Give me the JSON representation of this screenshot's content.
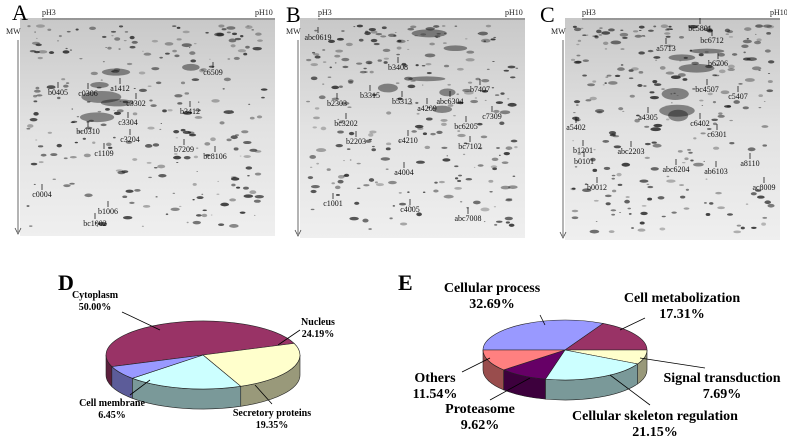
{
  "gels": [
    {
      "panel": "A",
      "left": "pH3",
      "right": "pH10",
      "axis": "MW",
      "spots": [
        "c6509",
        "b0405",
        "c0306",
        "a1412",
        "c3302",
        "b3412",
        "c3304",
        "bc0310",
        "c3204",
        "b7209",
        "bc8106",
        "c1109",
        "c0004",
        "b1006",
        "bc1002"
      ]
    },
    {
      "panel": "B",
      "left": "pH3",
      "right": "pH10",
      "axis": "MW",
      "spots": [
        "abc0619",
        "b3408",
        "b7407",
        "b2303",
        "b3315",
        "b5313",
        "a4209",
        "abc6304",
        "c7309",
        "bc3202",
        "bc6205",
        "c4210",
        "b2203",
        "bc7102",
        "a4004",
        "c1001",
        "c4005",
        "abc7008"
      ]
    },
    {
      "panel": "C",
      "left": "pH3",
      "right": "pH10",
      "axis": "MW",
      "spots": [
        "bc5801",
        "bc6712",
        "a5713",
        "b6706",
        "bc4507",
        "c5407",
        "a4305",
        "c6402",
        "a5402",
        "c6301",
        "b1201",
        "abc2203",
        "b0101",
        "abc6204",
        "ab6103",
        "a8110",
        "b0012",
        "ac8009"
      ]
    }
  ],
  "chart_data": [
    {
      "type": "pie",
      "panel": "D",
      "categories": [
        "Cytoplasm",
        "Nucleus",
        "Secretory proteins",
        "Cell membrane"
      ],
      "values": [
        50.0,
        24.19,
        19.35,
        6.45
      ],
      "value_labels": [
        "50.00%",
        "24.19%",
        "19.35%",
        "6.45%"
      ],
      "colors": [
        "#993366",
        "#ffffcc",
        "#ccffff",
        "#9999ff"
      ]
    },
    {
      "type": "pie",
      "panel": "E",
      "categories": [
        "Cellular process",
        "Cell metabolization",
        "Signal transduction",
        "Cellular skeleton regulation",
        "Proteasome",
        "Others"
      ],
      "values": [
        32.69,
        17.31,
        7.69,
        21.15,
        9.62,
        11.54
      ],
      "value_labels": [
        "32.69%",
        "17.31%",
        "7.69%",
        "21.15%",
        "9.62%",
        "11.54%"
      ],
      "colors": [
        "#9999ff",
        "#993366",
        "#ffffcc",
        "#ccffff",
        "#660066",
        "#ff8080"
      ]
    }
  ]
}
